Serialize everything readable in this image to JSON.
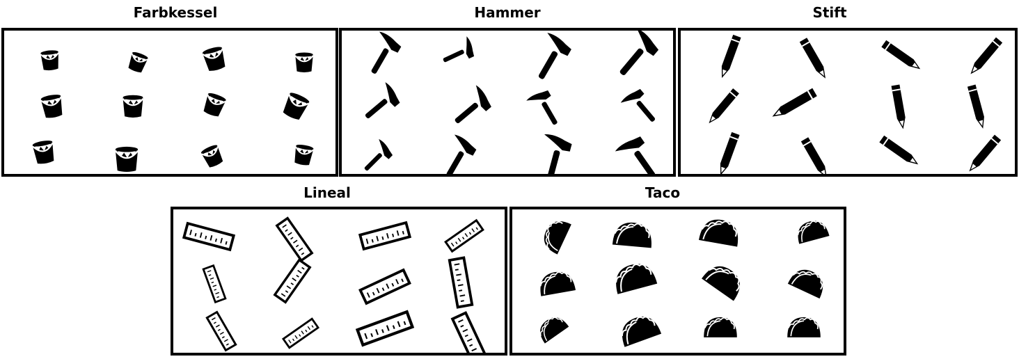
{
  "panels": [
    {
      "label": "Farbkessel",
      "icon": "paint-bucket-icon",
      "count": 12
    },
    {
      "label": "Hammer",
      "icon": "hammer-icon",
      "count": 12
    },
    {
      "label": "Stift",
      "icon": "pencil-icon",
      "count": 12
    },
    {
      "label": "Lineal",
      "icon": "ruler-icon",
      "count": 12
    },
    {
      "label": "Taco",
      "icon": "taco-icon",
      "count": 12
    }
  ]
}
